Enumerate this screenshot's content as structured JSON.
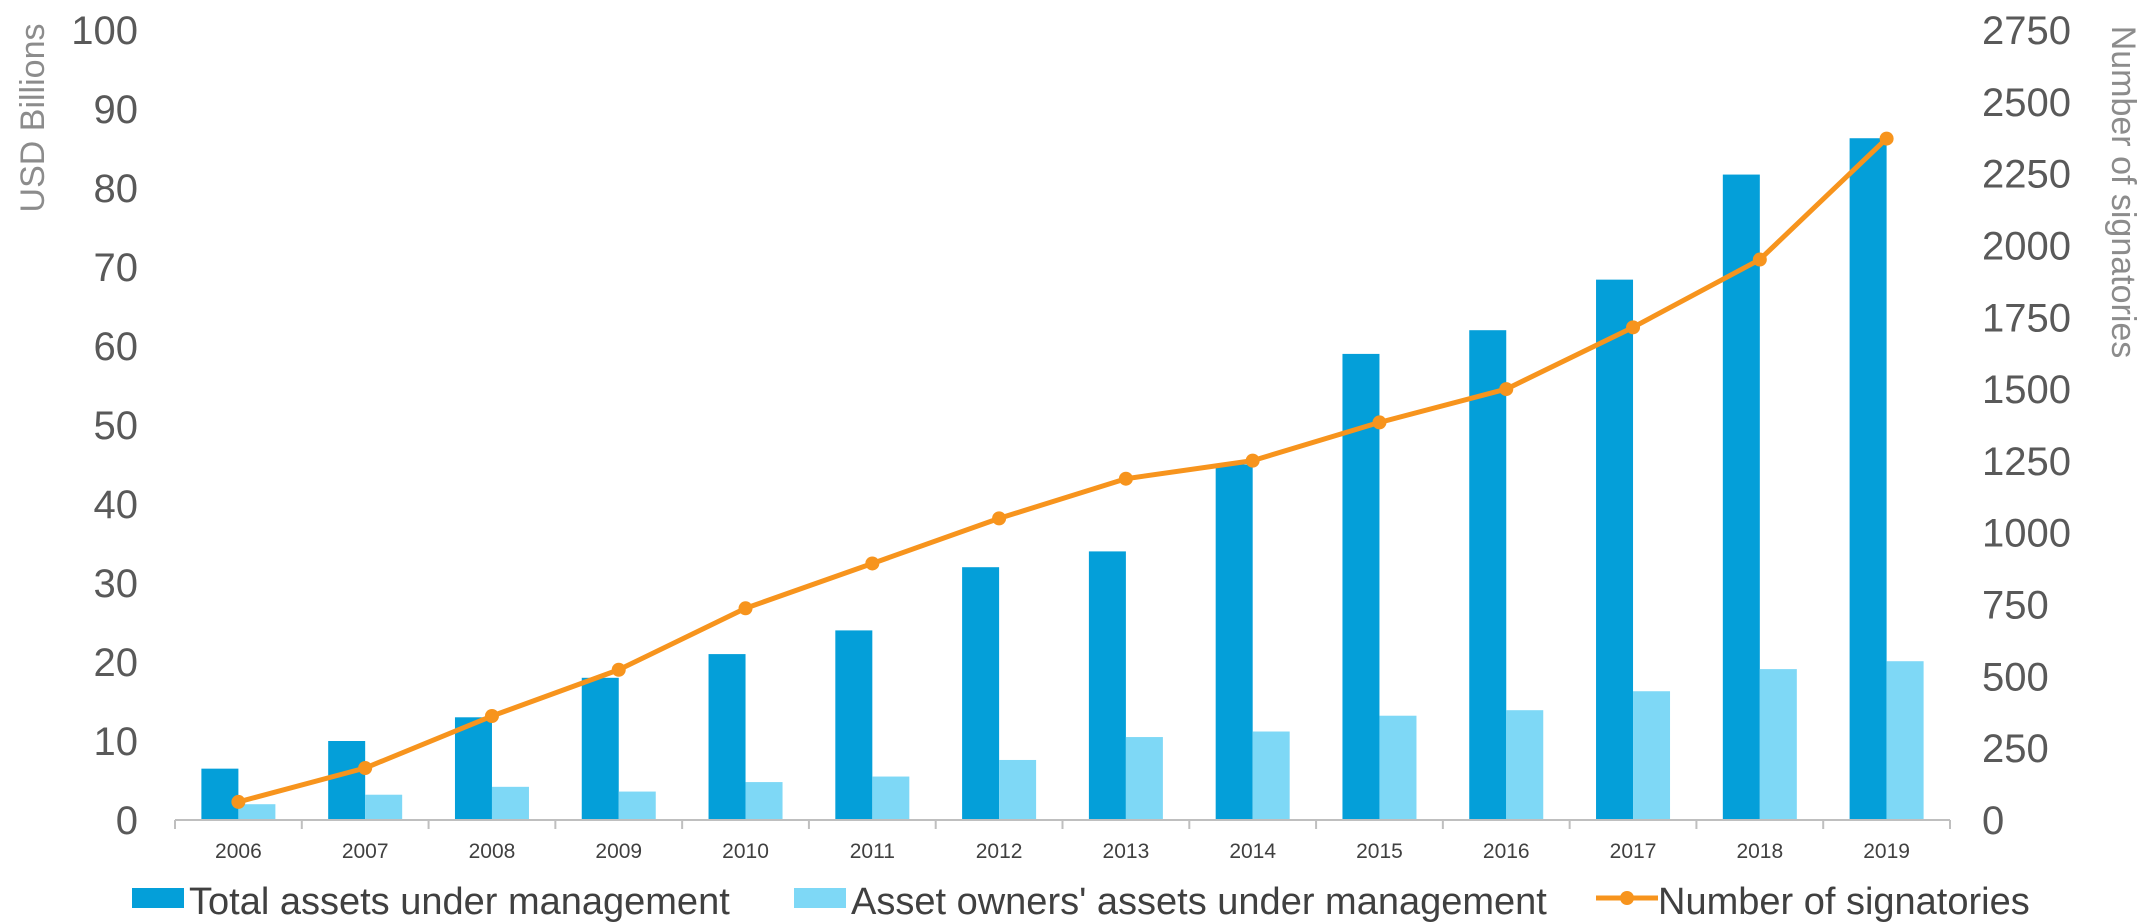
{
  "chart_data": {
    "type": "bar",
    "categories": [
      "2006",
      "2007",
      "2008",
      "2009",
      "2010",
      "2011",
      "2012",
      "2013",
      "2014",
      "2015",
      "2016",
      "2017",
      "2018",
      "2019"
    ],
    "series": [
      {
        "name": "Total assets under management",
        "type": "bar",
        "axis": "left",
        "color": "#049FD9",
        "values": [
          6.5,
          10,
          13,
          18,
          21,
          24,
          32,
          34,
          45,
          59,
          62,
          68.4,
          81.7,
          86.3
        ]
      },
      {
        "name": "Asset owners' assets under management",
        "type": "bar",
        "axis": "left",
        "color": "#7ED8F6",
        "values": [
          2,
          3.2,
          4.2,
          3.6,
          4.8,
          5.5,
          7.6,
          10.5,
          11.2,
          13.2,
          13.9,
          16.3,
          19.1,
          20.1
        ]
      },
      {
        "name": "Number of signatories",
        "type": "line",
        "axis": "right",
        "color": "#F7941D",
        "values": [
          63,
          181,
          362,
          523,
          737,
          893,
          1050,
          1188,
          1251,
          1384,
          1500,
          1715,
          1951,
          2372
        ]
      }
    ],
    "ylabel": "USD Billions",
    "y2label": "Number of signatories",
    "ylim": [
      0,
      100
    ],
    "y2lim": [
      0,
      2750
    ],
    "yticks": [
      "0",
      "10",
      "20",
      "30",
      "40",
      "50",
      "60",
      "70",
      "80",
      "90",
      "100"
    ],
    "y2ticks": [
      "0",
      "250",
      "500",
      "750",
      "1000",
      "1250",
      "1500",
      "1750",
      "2000",
      "2250",
      "2500",
      "2750"
    ],
    "grid": false,
    "legend_position": "bottom"
  }
}
